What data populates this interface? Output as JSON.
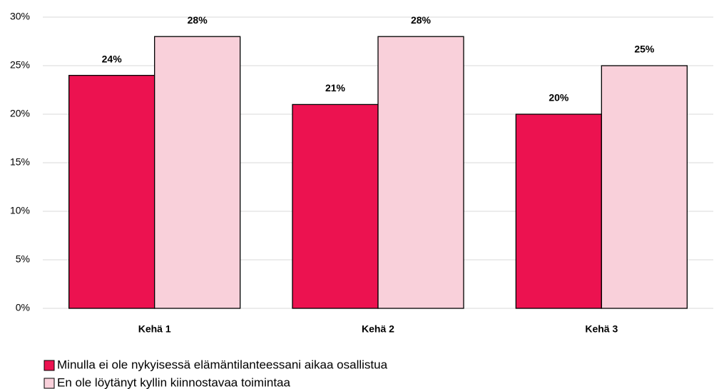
{
  "chart_data": {
    "type": "bar",
    "categories": [
      "Kehä 1",
      "Kehä 2",
      "Kehä 3"
    ],
    "series": [
      {
        "name": "Minulla ei ole nykyisessä elämäntilanteessani aikaa osallistua",
        "color": "#ec1250",
        "values": [
          24,
          21,
          20
        ],
        "value_labels": [
          "24%",
          "21%",
          "20%"
        ]
      },
      {
        "name": "En ole löytänyt kyllin kiinnostavaa toimintaa",
        "color": "#f9d0da",
        "values": [
          28,
          28,
          25
        ],
        "value_labels": [
          "28%",
          "28%",
          "25%"
        ]
      }
    ],
    "ylim": [
      0,
      30
    ],
    "yticks": [
      {
        "value": 0,
        "label": "0%"
      },
      {
        "value": 5,
        "label": "5%"
      },
      {
        "value": 10,
        "label": "10%"
      },
      {
        "value": 15,
        "label": "15%"
      },
      {
        "value": 20,
        "label": "20%"
      },
      {
        "value": 25,
        "label": "25%"
      },
      {
        "value": 30,
        "label": "30%"
      }
    ],
    "grid": true
  }
}
